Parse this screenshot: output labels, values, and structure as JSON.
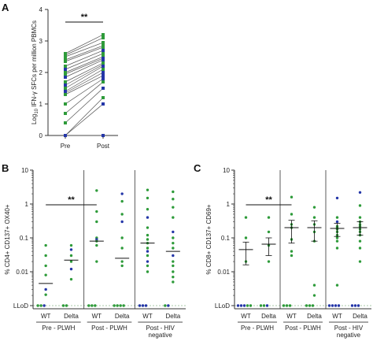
{
  "colors": {
    "green": "#2e9b3a",
    "blue": "#2436a8",
    "axis": "#333333",
    "line": "#555555",
    "lod": "#a9c9a9"
  },
  "panels": {
    "a": "A",
    "b": "B",
    "c": "C"
  },
  "chart_data": [
    {
      "type": "scatter",
      "panel": "A",
      "ylabel": "Log10 IFN-γ SFCs per million PBMCs",
      "ylabel_parts": {
        "prefix": "Log",
        "sub": "10",
        "suffix": " IFN-γ SFCs per million PBMCs"
      },
      "ylim": [
        0,
        4
      ],
      "yticks": [
        "0",
        "1",
        "2",
        "3",
        "4"
      ],
      "categories": [
        "Pre",
        "Post"
      ],
      "significance": "**",
      "paired_lines": true,
      "pairs": [
        {
          "pre": 2.6,
          "post": 3.2,
          "pre_color": "green",
          "post_color": "green"
        },
        {
          "pre": 2.55,
          "post": 3.1,
          "pre_color": "green",
          "post_color": "green"
        },
        {
          "pre": 2.5,
          "post": 2.95,
          "pre_color": "green",
          "post_color": "green"
        },
        {
          "pre": 2.4,
          "post": 2.85,
          "pre_color": "green",
          "post_color": "green"
        },
        {
          "pre": 2.35,
          "post": 2.8,
          "pre_color": "green",
          "post_color": "green"
        },
        {
          "pre": 2.2,
          "post": 2.7,
          "pre_color": "green",
          "post_color": "blue"
        },
        {
          "pre": 2.1,
          "post": 2.6,
          "pre_color": "blue",
          "post_color": "green"
        },
        {
          "pre": 2.0,
          "post": 2.5,
          "pre_color": "green",
          "post_color": "green"
        },
        {
          "pre": 1.95,
          "post": 2.45,
          "pre_color": "green",
          "post_color": "blue"
        },
        {
          "pre": 1.85,
          "post": 2.4,
          "pre_color": "blue",
          "post_color": "blue"
        },
        {
          "pre": 1.7,
          "post": 2.3,
          "pre_color": "green",
          "post_color": "green"
        },
        {
          "pre": 1.6,
          "post": 2.25,
          "pre_color": "blue",
          "post_color": "green"
        },
        {
          "pre": 1.5,
          "post": 2.2,
          "pre_color": "green",
          "post_color": "blue"
        },
        {
          "pre": 1.4,
          "post": 2.1,
          "pre_color": "blue",
          "post_color": "green"
        },
        {
          "pre": 1.35,
          "post": 2.0,
          "pre_color": "blue",
          "post_color": "blue"
        },
        {
          "pre": 1.3,
          "post": 1.9,
          "pre_color": "green",
          "post_color": "blue"
        },
        {
          "pre": 1.0,
          "post": 1.8,
          "pre_color": "green",
          "post_color": "blue"
        },
        {
          "pre": 0.7,
          "post": 1.7,
          "pre_color": "green",
          "post_color": "green"
        },
        {
          "pre": 0.4,
          "post": 1.5,
          "pre_color": "green",
          "post_color": "blue"
        },
        {
          "pre": 0.0,
          "post": 1.2,
          "pre_color": "green",
          "post_color": "green"
        },
        {
          "pre": 0.0,
          "post": 1.0,
          "pre_color": "blue",
          "post_color": "blue"
        },
        {
          "pre": 0.0,
          "post": 0.0,
          "pre_color": "blue",
          "post_color": "blue"
        }
      ]
    },
    {
      "type": "scatter",
      "panel": "B",
      "ylabel": "% CD4+ CD137+ OX40+",
      "yscale": "log",
      "ylim": [
        0.001,
        10
      ],
      "yticks": [
        "10",
        "1",
        "0.1",
        "0.01",
        "LLoD"
      ],
      "categories": [
        "WT",
        "Delta",
        "WT",
        "Delta",
        "WT",
        "Delta"
      ],
      "groups": [
        {
          "label": "Pre - PLWH",
          "lines": [
            "Pre - PLWH"
          ]
        },
        {
          "label": "Post - PLWH",
          "lines": [
            "Post - PLWH"
          ]
        },
        {
          "label": "Post - HIV negative",
          "lines": [
            "Post - HIV",
            "negative"
          ]
        }
      ],
      "significance": {
        "text": "**",
        "from": 0,
        "to": 2
      },
      "summary": [
        {
          "center": 0.0045,
          "low": null,
          "high": null
        },
        {
          "center": 0.022,
          "low": null,
          "high": null
        },
        {
          "center": 0.08,
          "low": null,
          "high": null
        },
        {
          "center": 0.025,
          "low": null,
          "high": null
        },
        {
          "center": 0.07,
          "low": null,
          "high": null
        },
        {
          "center": 0.04,
          "low": null,
          "high": null
        }
      ],
      "points": [
        [
          {
            "v": 0.06,
            "c": "green"
          },
          {
            "v": 0.03,
            "c": "green"
          },
          {
            "v": 0.015,
            "c": "green"
          },
          {
            "v": 0.008,
            "c": "green"
          },
          {
            "v": 0.003,
            "c": "blue"
          },
          {
            "v": 0.0021,
            "c": "green"
          },
          {
            "v": "LLoD",
            "c": "green"
          },
          {
            "v": "LLoD",
            "c": "green"
          },
          {
            "v": "LLoD",
            "c": "blue"
          }
        ],
        [
          {
            "v": 0.06,
            "c": "green"
          },
          {
            "v": 0.045,
            "c": "blue"
          },
          {
            "v": 0.03,
            "c": "green"
          },
          {
            "v": 0.02,
            "c": "green"
          },
          {
            "v": 0.012,
            "c": "blue"
          },
          {
            "v": 0.006,
            "c": "green"
          },
          {
            "v": "LLoD",
            "c": "green"
          },
          {
            "v": "LLoD",
            "c": "green"
          }
        ],
        [
          {
            "v": 2.5,
            "c": "green"
          },
          {
            "v": 0.6,
            "c": "green"
          },
          {
            "v": 0.3,
            "c": "green"
          },
          {
            "v": 0.1,
            "c": "green"
          },
          {
            "v": 0.09,
            "c": "blue"
          },
          {
            "v": 0.08,
            "c": "green"
          },
          {
            "v": 0.06,
            "c": "green"
          },
          {
            "v": 0.02,
            "c": "green"
          },
          {
            "v": "LLoD",
            "c": "green"
          },
          {
            "v": "LLoD",
            "c": "green"
          },
          {
            "v": "LLoD",
            "c": "green"
          }
        ],
        [
          {
            "v": 2.0,
            "c": "blue"
          },
          {
            "v": 1.2,
            "c": "green"
          },
          {
            "v": 0.5,
            "c": "green"
          },
          {
            "v": 0.3,
            "c": "blue"
          },
          {
            "v": 0.1,
            "c": "green"
          },
          {
            "v": 0.05,
            "c": "green"
          },
          {
            "v": 0.02,
            "c": "green"
          },
          {
            "v": 0.015,
            "c": "green"
          },
          {
            "v": "LLoD",
            "c": "green"
          },
          {
            "v": "LLoD",
            "c": "green"
          },
          {
            "v": "LLoD",
            "c": "green"
          },
          {
            "v": "LLoD",
            "c": "green"
          }
        ],
        [
          {
            "v": 2.6,
            "c": "green"
          },
          {
            "v": 1.5,
            "c": "green"
          },
          {
            "v": 0.7,
            "c": "green"
          },
          {
            "v": 0.4,
            "c": "blue"
          },
          {
            "v": 0.2,
            "c": "green"
          },
          {
            "v": 0.12,
            "c": "green"
          },
          {
            "v": 0.09,
            "c": "green"
          },
          {
            "v": 0.07,
            "c": "green"
          },
          {
            "v": 0.05,
            "c": "green"
          },
          {
            "v": 0.04,
            "c": "blue"
          },
          {
            "v": 0.03,
            "c": "green"
          },
          {
            "v": 0.02,
            "c": "blue"
          },
          {
            "v": 0.015,
            "c": "green"
          },
          {
            "v": 0.01,
            "c": "green"
          },
          {
            "v": "LLoD",
            "c": "blue"
          },
          {
            "v": "LLoD",
            "c": "blue"
          },
          {
            "v": "LLoD",
            "c": "blue"
          }
        ],
        [
          {
            "v": 2.3,
            "c": "green"
          },
          {
            "v": 1.4,
            "c": "green"
          },
          {
            "v": 0.8,
            "c": "green"
          },
          {
            "v": 0.4,
            "c": "green"
          },
          {
            "v": 0.15,
            "c": "blue"
          },
          {
            "v": 0.1,
            "c": "green"
          },
          {
            "v": 0.07,
            "c": "green"
          },
          {
            "v": 0.05,
            "c": "green"
          },
          {
            "v": 0.03,
            "c": "blue"
          },
          {
            "v": 0.02,
            "c": "green"
          },
          {
            "v": 0.015,
            "c": "green"
          },
          {
            "v": 0.01,
            "c": "green"
          },
          {
            "v": 0.007,
            "c": "green"
          },
          {
            "v": 0.005,
            "c": "green"
          },
          {
            "v": "LLoD",
            "c": "green"
          },
          {
            "v": "LLoD",
            "c": "blue"
          }
        ]
      ]
    },
    {
      "type": "scatter",
      "panel": "C",
      "ylabel": "% CD8+ CD137+ CD69+",
      "yscale": "log",
      "ylim": [
        0.001,
        10
      ],
      "yticks": [
        "10",
        "1",
        "0.1",
        "0.01",
        "LLoD"
      ],
      "categories": [
        "WT",
        "Delta",
        "WT",
        "Delta",
        "WT",
        "Delta"
      ],
      "groups": [
        {
          "label": "Pre - PLWH",
          "lines": [
            "Pre - PLWH"
          ]
        },
        {
          "label": "Post - PLWH",
          "lines": [
            "Post - PLWH"
          ]
        },
        {
          "label": "Post - HIV negative",
          "lines": [
            "Post - HIV",
            "negative"
          ]
        }
      ],
      "significance": {
        "text": "**",
        "from": 0,
        "to": 2
      },
      "summary": [
        {
          "center": 0.045,
          "low": 0.016,
          "high": 0.075
        },
        {
          "center": 0.065,
          "low": 0.03,
          "high": 0.1
        },
        {
          "center": 0.2,
          "low": 0.07,
          "high": 0.33
        },
        {
          "center": 0.2,
          "low": 0.08,
          "high": 0.32
        },
        {
          "center": 0.19,
          "low": 0.11,
          "high": 0.27
        },
        {
          "center": 0.2,
          "low": 0.12,
          "high": 0.3
        }
      ],
      "points": [
        [
          {
            "v": 0.4,
            "c": "green"
          },
          {
            "v": 0.1,
            "c": "green"
          },
          {
            "v": 0.02,
            "c": "green"
          },
          {
            "v": "LLoD",
            "c": "blue"
          },
          {
            "v": "LLoD",
            "c": "blue"
          },
          {
            "v": "LLoD",
            "c": "blue"
          },
          {
            "v": "LLoD",
            "c": "green"
          },
          {
            "v": "LLoD",
            "c": "green"
          }
        ],
        [
          {
            "v": 0.4,
            "c": "green"
          },
          {
            "v": 0.15,
            "c": "green"
          },
          {
            "v": 0.06,
            "c": "green"
          },
          {
            "v": 0.02,
            "c": "green"
          },
          {
            "v": "LLoD",
            "c": "green"
          },
          {
            "v": "LLoD",
            "c": "green"
          },
          {
            "v": "LLoD",
            "c": "blue"
          }
        ],
        [
          {
            "v": 1.6,
            "c": "green"
          },
          {
            "v": 0.5,
            "c": "green"
          },
          {
            "v": 0.25,
            "c": "green"
          },
          {
            "v": 0.2,
            "c": "green"
          },
          {
            "v": 0.09,
            "c": "green"
          },
          {
            "v": 0.04,
            "c": "green"
          },
          {
            "v": 0.03,
            "c": "green"
          },
          {
            "v": "LLoD",
            "c": "green"
          },
          {
            "v": "LLoD",
            "c": "green"
          },
          {
            "v": "LLoD",
            "c": "green"
          }
        ],
        [
          {
            "v": 0.8,
            "c": "green"
          },
          {
            "v": 0.4,
            "c": "green"
          },
          {
            "v": 0.25,
            "c": "green"
          },
          {
            "v": 0.15,
            "c": "green"
          },
          {
            "v": 0.08,
            "c": "green"
          },
          {
            "v": 0.004,
            "c": "green"
          },
          {
            "v": 0.002,
            "c": "green"
          },
          {
            "v": "LLoD",
            "c": "green"
          },
          {
            "v": "LLoD",
            "c": "green"
          },
          {
            "v": "LLoD",
            "c": "green"
          }
        ],
        [
          {
            "v": 1.5,
            "c": "blue"
          },
          {
            "v": 0.4,
            "c": "green"
          },
          {
            "v": 0.3,
            "c": "blue"
          },
          {
            "v": 0.22,
            "c": "green"
          },
          {
            "v": 0.2,
            "c": "green"
          },
          {
            "v": 0.18,
            "c": "green"
          },
          {
            "v": 0.15,
            "c": "green"
          },
          {
            "v": 0.12,
            "c": "green"
          },
          {
            "v": 0.1,
            "c": "green"
          },
          {
            "v": 0.08,
            "c": "green"
          },
          {
            "v": 0.05,
            "c": "green"
          },
          {
            "v": 0.004,
            "c": "green"
          },
          {
            "v": "LLoD",
            "c": "blue"
          },
          {
            "v": "LLoD",
            "c": "blue"
          },
          {
            "v": "LLoD",
            "c": "blue"
          },
          {
            "v": "LLoD",
            "c": "blue"
          }
        ],
        [
          {
            "v": 2.2,
            "c": "blue"
          },
          {
            "v": 0.9,
            "c": "green"
          },
          {
            "v": 0.4,
            "c": "green"
          },
          {
            "v": 0.3,
            "c": "green"
          },
          {
            "v": 0.25,
            "c": "green"
          },
          {
            "v": 0.22,
            "c": "green"
          },
          {
            "v": 0.18,
            "c": "green"
          },
          {
            "v": 0.15,
            "c": "green"
          },
          {
            "v": 0.12,
            "c": "green"
          },
          {
            "v": 0.08,
            "c": "green"
          },
          {
            "v": 0.05,
            "c": "green"
          },
          {
            "v": 0.02,
            "c": "green"
          },
          {
            "v": "LLoD",
            "c": "blue"
          },
          {
            "v": "LLoD",
            "c": "blue"
          },
          {
            "v": "LLoD",
            "c": "blue"
          }
        ]
      ]
    }
  ]
}
